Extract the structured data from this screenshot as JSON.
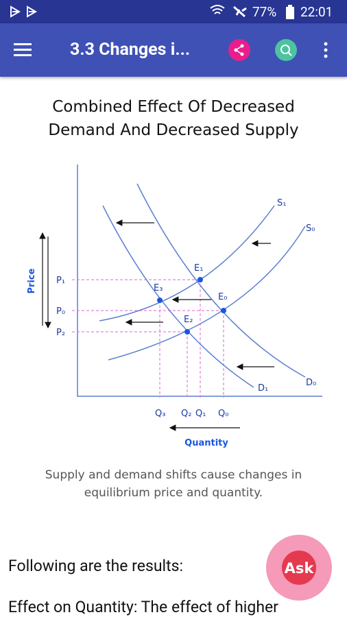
{
  "status_bar": {
    "battery": "77%",
    "time": "22:01"
  },
  "app_bar": {
    "title": "3.3 Changes i..."
  },
  "figure": {
    "title_lines": [
      "Combined Effect Of Decreased",
      "Demand And Decreased Supply"
    ],
    "axis_labels": {
      "y": "Price",
      "x": "Quantity"
    },
    "curve_labels": {
      "s1": "S₁",
      "s0": "S₀",
      "d1": "D₁",
      "d0": "D₀"
    },
    "points": {
      "e1": "E₁",
      "e0": "E₀",
      "e2": "E₂",
      "e3": "E₃"
    },
    "price_labels": {
      "p1": "P₁",
      "p0": "P₀",
      "p2": "P₂"
    },
    "quantity_labels": {
      "q3": "Q₃",
      "q2": "Q₂",
      "q1": "Q₁",
      "q0": "Q₀"
    },
    "caption_lines": [
      "Supply and demand shifts cause changes in",
      "equilibrium price and quantity."
    ]
  },
  "body": {
    "lines": [
      "Following are the results:",
      "Effect on Quantity: The effect of higher"
    ]
  },
  "fab": {
    "label": "Ask"
  }
}
